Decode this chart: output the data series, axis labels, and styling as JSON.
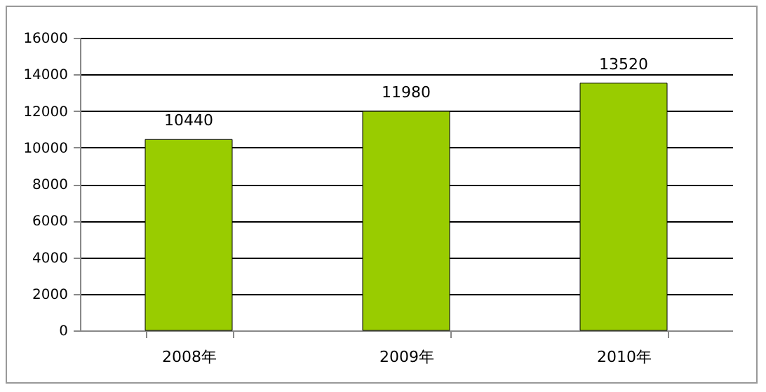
{
  "chart_data": {
    "type": "bar",
    "categories": [
      "2008年",
      "2009年",
      "2010年"
    ],
    "values": [
      10440,
      11980,
      13520
    ],
    "color": "#99cc00",
    "ylim": [
      0,
      16000
    ],
    "yticks": [
      0,
      2000,
      4000,
      6000,
      8000,
      10000,
      12000,
      14000,
      16000
    ],
    "grid": "y",
    "data_labels": true
  }
}
